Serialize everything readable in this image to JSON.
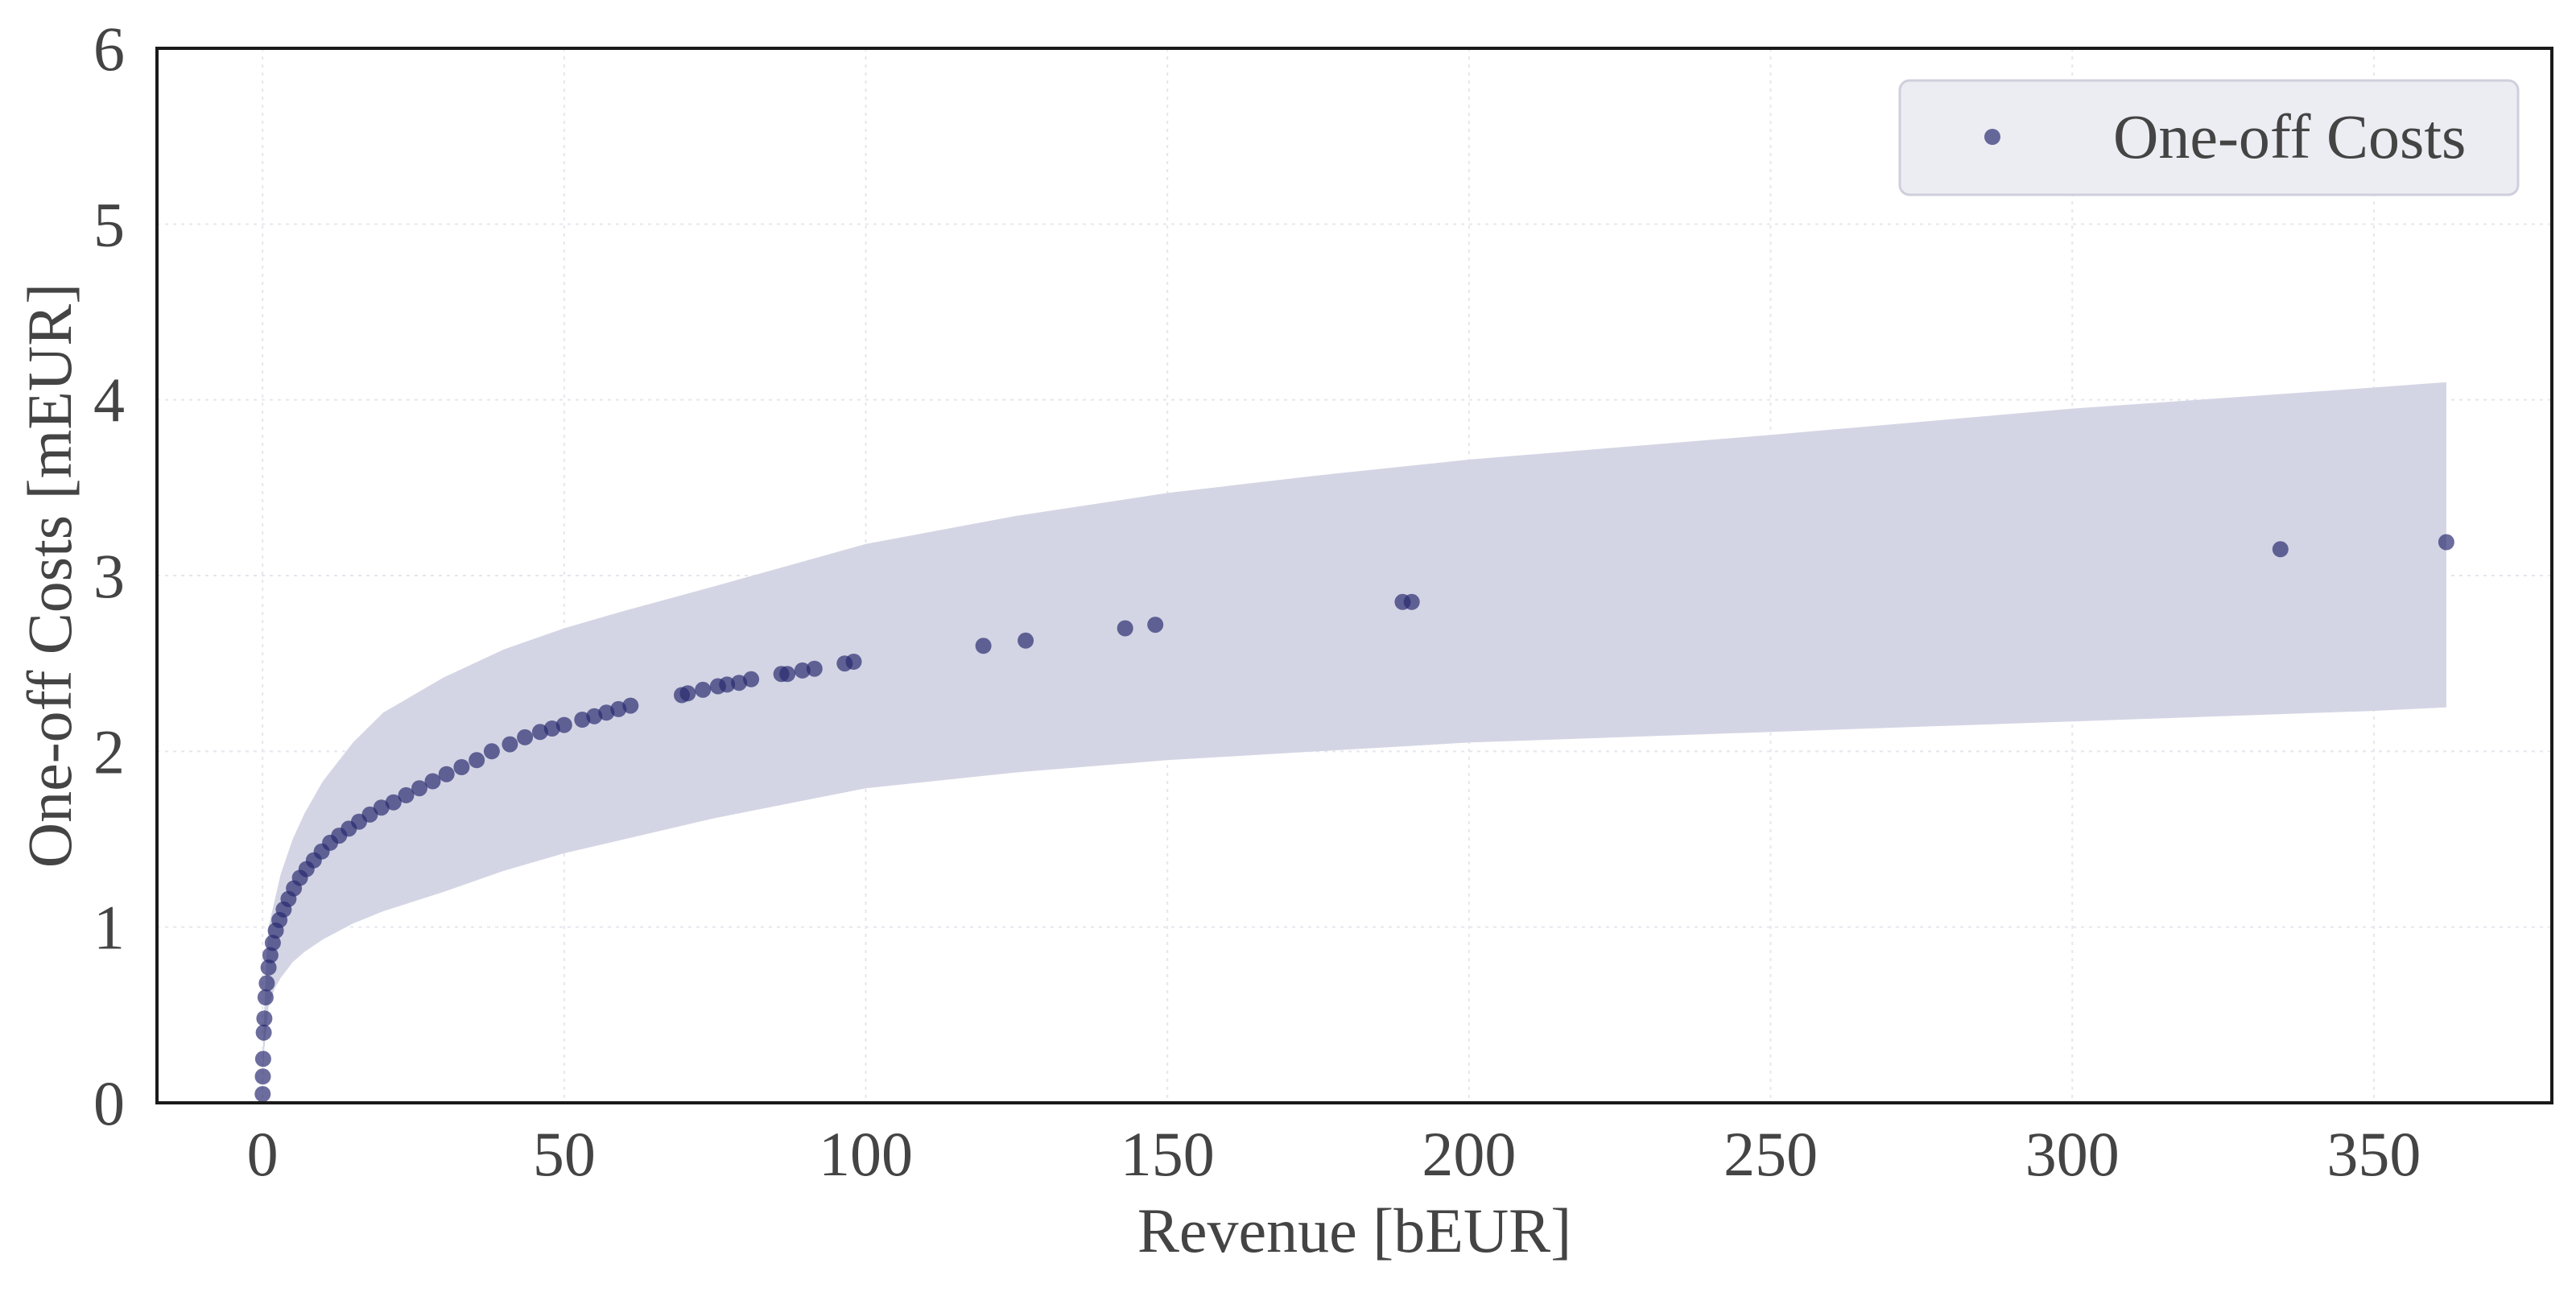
{
  "chart_data": {
    "type": "scatter",
    "title": "",
    "xlabel": "Revenue [bEUR]",
    "ylabel": "One-off Costs [mEUR]",
    "xlim": [
      -17.5,
      379.5
    ],
    "ylim": [
      0,
      6
    ],
    "xticks": [
      0,
      50,
      100,
      150,
      200,
      250,
      300,
      350
    ],
    "yticks": [
      0,
      1,
      2,
      3,
      4,
      5,
      6
    ],
    "grid": true,
    "legend_position": "top-right",
    "series": [
      {
        "name": "One-off Costs",
        "color": "#26286e",
        "points": [
          [
            0.02,
            0.05
          ],
          [
            0.05,
            0.15
          ],
          [
            0.1,
            0.25
          ],
          [
            0.2,
            0.4
          ],
          [
            0.3,
            0.48
          ],
          [
            0.5,
            0.6
          ],
          [
            0.7,
            0.68
          ],
          [
            1.0,
            0.77
          ],
          [
            1.3,
            0.84
          ],
          [
            1.7,
            0.91
          ],
          [
            2.2,
            0.98
          ],
          [
            2.8,
            1.04
          ],
          [
            3.5,
            1.1
          ],
          [
            4.3,
            1.16
          ],
          [
            5.2,
            1.22
          ],
          [
            6.2,
            1.28
          ],
          [
            7.3,
            1.33
          ],
          [
            8.5,
            1.38
          ],
          [
            9.8,
            1.43
          ],
          [
            11.2,
            1.48
          ],
          [
            12.7,
            1.52
          ],
          [
            14.3,
            1.56
          ],
          [
            16.0,
            1.6
          ],
          [
            17.8,
            1.64
          ],
          [
            19.7,
            1.68
          ],
          [
            21.7,
            1.71
          ],
          [
            23.8,
            1.75
          ],
          [
            26.0,
            1.79
          ],
          [
            28.2,
            1.83
          ],
          [
            30.5,
            1.87
          ],
          [
            33.0,
            1.91
          ],
          [
            35.5,
            1.95
          ],
          [
            38.0,
            2.0
          ],
          [
            41.0,
            2.04
          ],
          [
            43.5,
            2.08
          ],
          [
            46.0,
            2.11
          ],
          [
            48.0,
            2.13
          ],
          [
            50.0,
            2.15
          ],
          [
            53.0,
            2.18
          ],
          [
            55.0,
            2.2
          ],
          [
            57.0,
            2.22
          ],
          [
            59.0,
            2.24
          ],
          [
            61.0,
            2.26
          ],
          [
            69.5,
            2.32
          ],
          [
            70.5,
            2.33
          ],
          [
            73.0,
            2.35
          ],
          [
            75.5,
            2.37
          ],
          [
            77.0,
            2.38
          ],
          [
            79.0,
            2.39
          ],
          [
            81.0,
            2.41
          ],
          [
            86.0,
            2.44
          ],
          [
            87.0,
            2.44
          ],
          [
            89.5,
            2.46
          ],
          [
            91.5,
            2.47
          ],
          [
            96.5,
            2.5
          ],
          [
            98.0,
            2.51
          ],
          [
            119.5,
            2.6
          ],
          [
            126.5,
            2.63
          ],
          [
            143.0,
            2.7
          ],
          [
            148.0,
            2.72
          ],
          [
            189.0,
            2.85
          ],
          [
            190.5,
            2.85
          ],
          [
            334.5,
            3.15
          ],
          [
            362.0,
            3.19
          ]
        ]
      }
    ],
    "band": {
      "x": [
        0,
        0.1,
        0.3,
        0.6,
        1,
        2,
        3,
        5,
        7,
        10,
        15,
        20,
        30,
        40,
        50,
        60,
        75,
        100,
        125,
        150,
        175,
        200,
        250,
        300,
        350,
        362
      ],
      "lower": [
        0,
        0.19,
        0.31,
        0.4,
        0.55,
        0.65,
        0.71,
        0.8,
        0.86,
        0.93,
        1.02,
        1.09,
        1.2,
        1.32,
        1.42,
        1.5,
        1.62,
        1.79,
        1.88,
        1.95,
        2.0,
        2.05,
        2.11,
        2.17,
        2.23,
        2.25
      ],
      "upper": [
        0,
        0.35,
        0.55,
        0.8,
        1.0,
        1.15,
        1.3,
        1.5,
        1.65,
        1.83,
        2.05,
        2.22,
        2.42,
        2.58,
        2.7,
        2.8,
        2.94,
        3.18,
        3.34,
        3.47,
        3.57,
        3.66,
        3.8,
        3.95,
        4.07,
        4.1
      ]
    }
  }
}
